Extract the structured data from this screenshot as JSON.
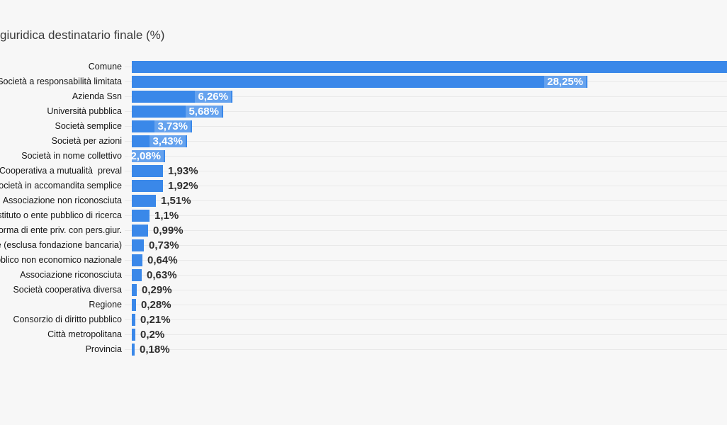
{
  "colors": {
    "bar": "#3a88e9",
    "background": "#f7f7f7",
    "grid": "#e9e9e9",
    "value_label_inside": "#ffffff",
    "value_label_outside": "#2e2e2e",
    "category_label": "#141414",
    "title": "#3b3b3b"
  },
  "chart_data": {
    "type": "bar",
    "orientation": "horizontal",
    "title": "giuridica destinatario finale (%)",
    "unit": "%",
    "xlabel": "",
    "ylabel": "",
    "grid": "row-lines",
    "xlim_visible_percent": [
      0,
      36.9
    ],
    "first_bar_clipped_at_right_edge": true,
    "title_clipped_at_left_edge": true,
    "categories": [
      "Comune",
      "Società a responsabilità limitata",
      "Azienda Ssn",
      "Università pubblica",
      "Società semplice",
      "Società per azioni",
      "Società in nome collettivo",
      "Cooperativa a mutualità  preval",
      "Società in accomandita semplice",
      "Associazione non riconosciuta",
      "Istituto o ente pubblico di ricerca",
      "forma di ente priv. con pers.giur.",
      "e (esclusa fondazione bancaria)",
      "bblico non economico nazionale",
      "Associazione riconosciuta",
      "Società cooperativa diversa",
      "Regione",
      "Consorzio di diritto pubblico",
      "Città metropolitana",
      "Provincia"
    ],
    "values": [
      null,
      28.25,
      6.26,
      5.68,
      3.73,
      3.43,
      2.08,
      1.93,
      1.92,
      1.51,
      1.1,
      0.99,
      0.73,
      0.64,
      0.63,
      0.29,
      0.28,
      0.21,
      0.2,
      0.18
    ],
    "value_labels": [
      "",
      "28,25%",
      "6,26%",
      "5,68%",
      "3,73%",
      "3,43%",
      "2,08%",
      "1,93%",
      "1,92%",
      "1,51%",
      "1,1%",
      "0,99%",
      "0,73%",
      "0,64%",
      "0,63%",
      "0,29%",
      "0,28%",
      "0,21%",
      "0,2%",
      "0,18%"
    ],
    "label_positions": [
      "none",
      "inside",
      "inside",
      "inside",
      "inside",
      "inside",
      "inside",
      "outside",
      "outside",
      "outside",
      "outside",
      "outside",
      "outside",
      "outside",
      "outside",
      "outside",
      "outside",
      "outside",
      "outside",
      "outside"
    ]
  }
}
